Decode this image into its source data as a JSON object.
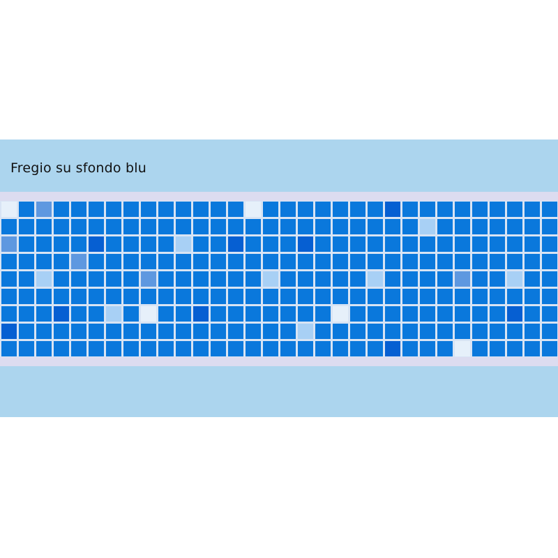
{
  "title": "Fregio su sfondo blu",
  "colors": {
    "page_background": "#ffffff",
    "band_background": "#acd5ee",
    "border_strip": "#dcdcf0",
    "grout": "#d8e4f4",
    "tile_base": "#0a78dc",
    "tile_dark": "#065fd2",
    "tile_mid": "#5e98e0",
    "tile_light": "#a8d0f5",
    "tile_white": "#e6f0fa"
  }
}
